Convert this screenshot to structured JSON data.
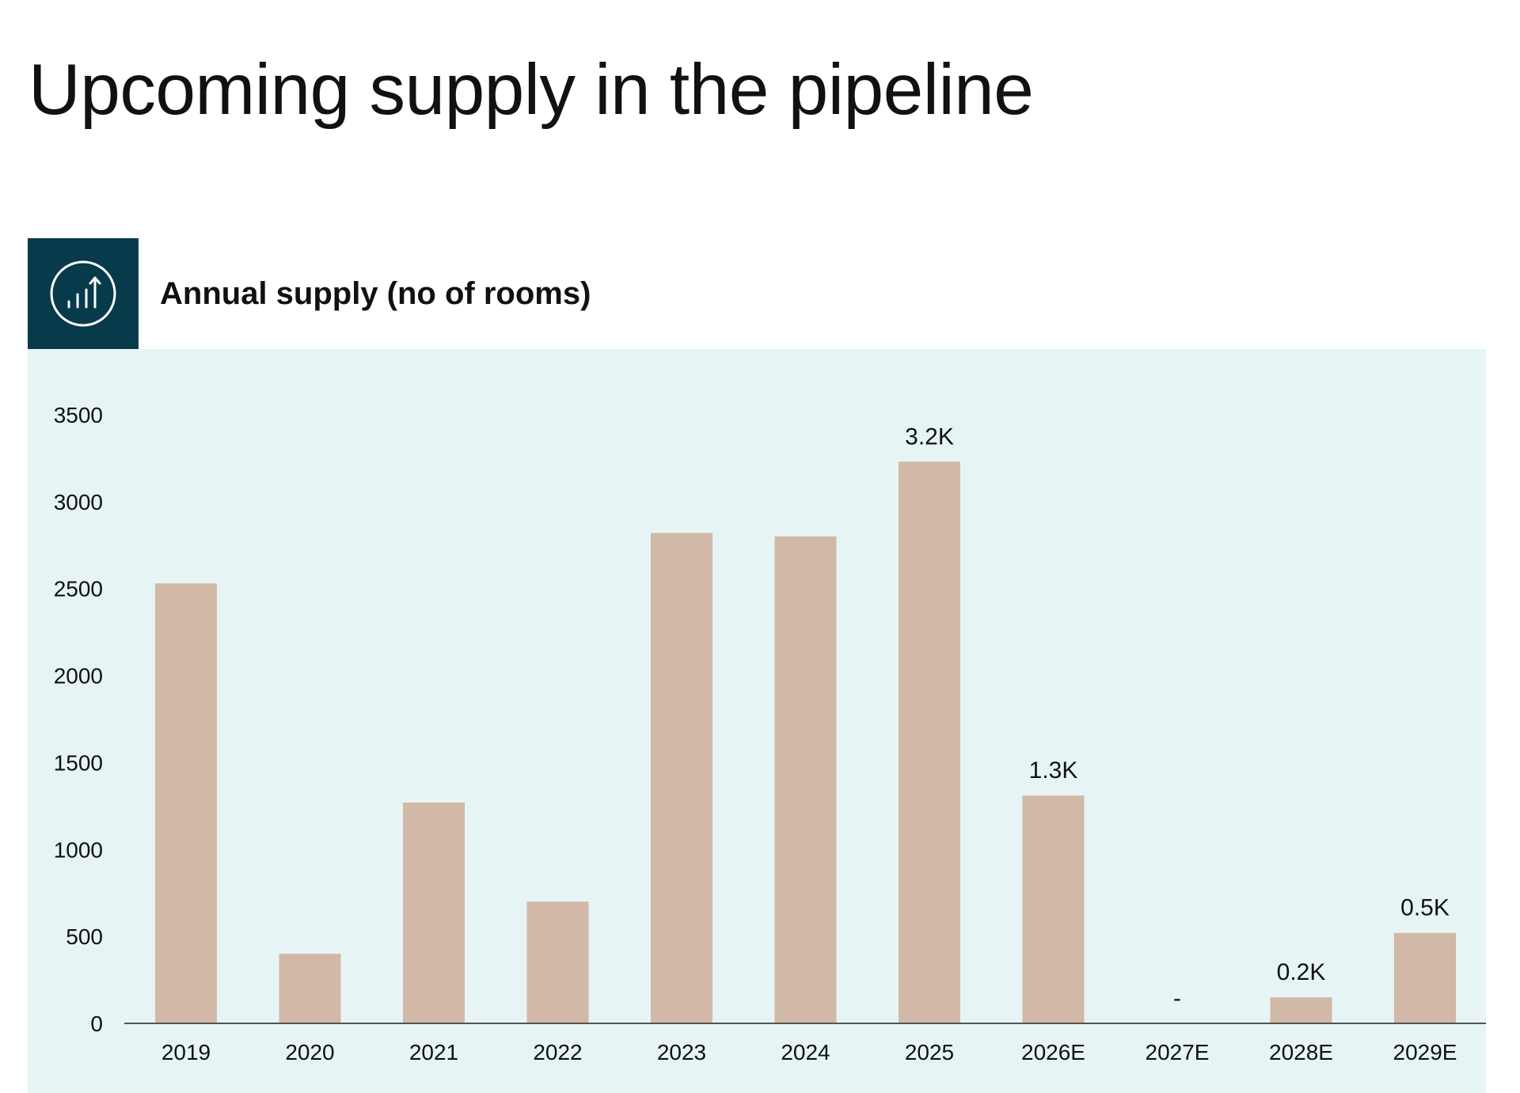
{
  "page": {
    "title": "Upcoming supply in the pipeline"
  },
  "colors": {
    "icon_background": "#073b4c",
    "panel_background": "#e7f4f6",
    "bar": "#d2b8a6",
    "axis": "#555555"
  },
  "icon": {
    "name": "bar-chart-arrow-up-icon"
  },
  "chart_data": {
    "type": "bar",
    "title": "Annual supply (no of rooms)",
    "xlabel": "",
    "ylabel": "",
    "categories": [
      "2019",
      "2020",
      "2021",
      "2022",
      "2023",
      "2024",
      "2025",
      "2026E",
      "2027E",
      "2028E",
      "2029E"
    ],
    "values": [
      2530,
      400,
      1270,
      700,
      2820,
      2800,
      3230,
      1310,
      0,
      150,
      520
    ],
    "data_labels": [
      "",
      "",
      "",
      "",
      "",
      "",
      "3.2K",
      "1.3K",
      "-",
      "0.2K",
      "0.5K"
    ],
    "ylim": [
      0,
      3500
    ],
    "yticks": [
      0,
      500,
      1000,
      1500,
      2000,
      2500,
      3000,
      3500
    ],
    "grid": false,
    "legend": "none"
  }
}
